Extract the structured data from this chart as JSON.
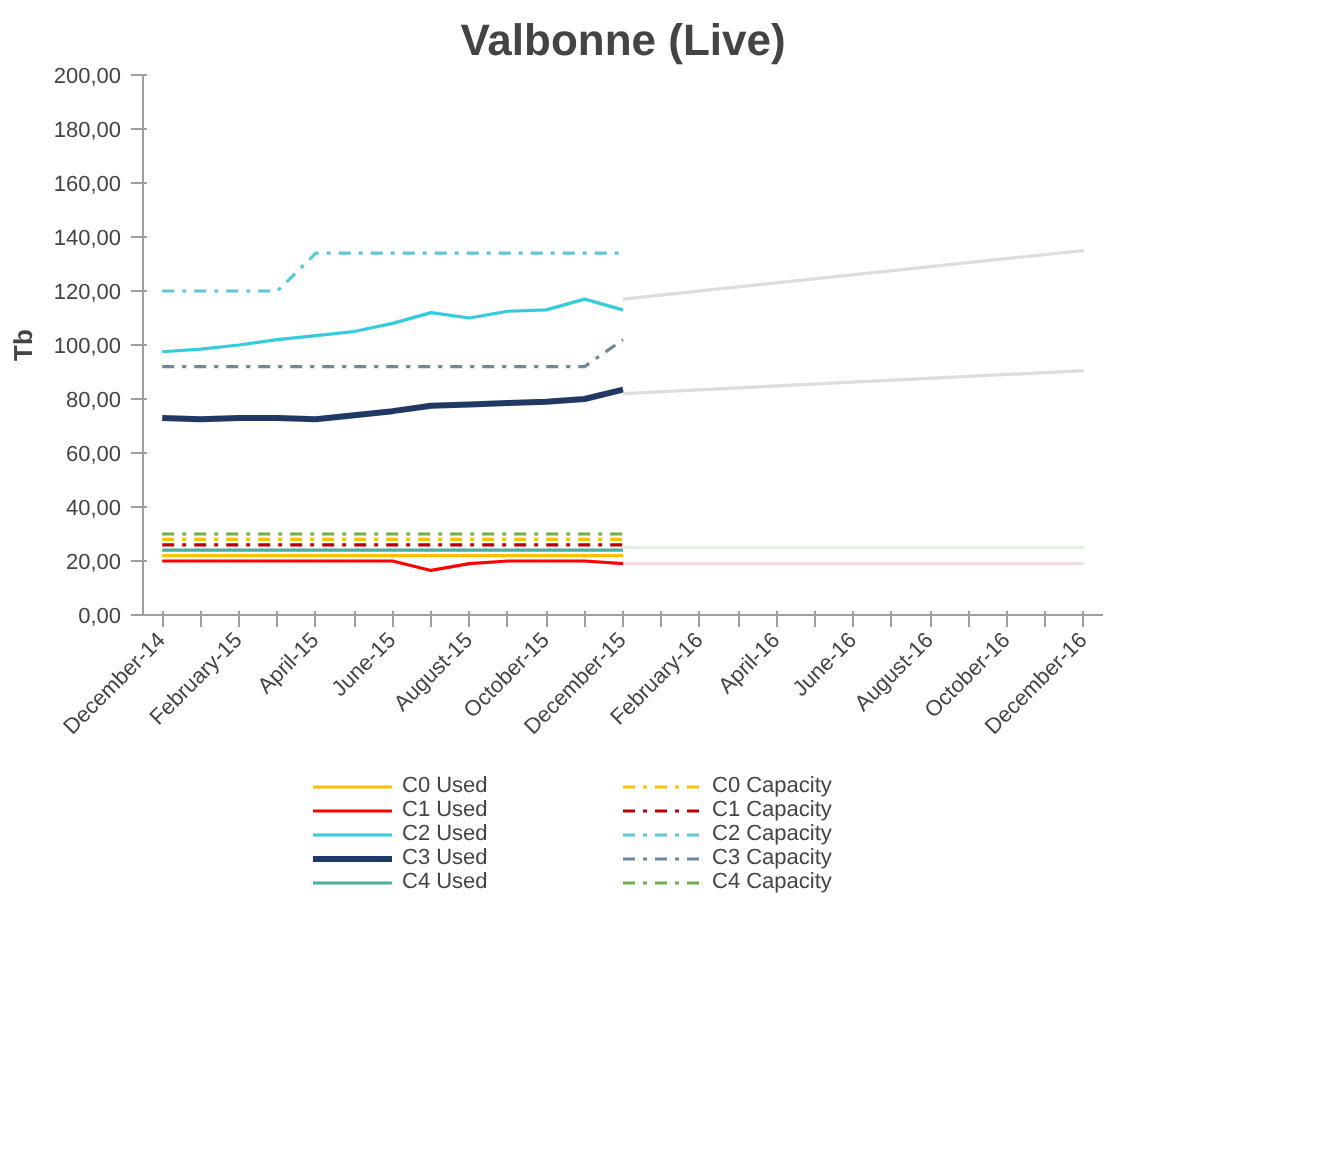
{
  "chart_data": {
    "type": "line",
    "title": "Valbonne (Live)",
    "ylabel": "Tb",
    "categories": [
      "December-14",
      null,
      "February-15",
      null,
      "April-15",
      null,
      "June-15",
      null,
      "August-15",
      null,
      "October-15",
      null,
      "December-15",
      null,
      "February-16",
      null,
      "April-16",
      null,
      "June-16",
      null,
      "August-16",
      null,
      "October-16",
      null,
      "December-16"
    ],
    "ylim": [
      0,
      200
    ],
    "yticks": [
      {
        "value": 0,
        "label": "0,00"
      },
      {
        "value": 20,
        "label": "20,00"
      },
      {
        "value": 40,
        "label": "40,00"
      },
      {
        "value": 60,
        "label": "60,00"
      },
      {
        "value": 80,
        "label": "80,00"
      },
      {
        "value": 100,
        "label": "100,00"
      },
      {
        "value": 120,
        "label": "120,00"
      },
      {
        "value": 140,
        "label": "140,00"
      },
      {
        "value": 160,
        "label": "160,00"
      },
      {
        "value": 180,
        "label": "180,00"
      },
      {
        "value": 200,
        "label": "200,00"
      }
    ],
    "grid": false,
    "legend": "bottom",
    "line_style": "solid",
    "marker": "none",
    "series": [
      {
        "name": "C0 Used",
        "color": "#ffc000",
        "values": [
          22,
          22,
          22,
          22,
          22,
          22,
          22,
          22,
          22,
          22,
          22,
          22,
          22,
          null,
          null,
          null,
          null,
          null,
          null,
          null,
          null,
          null,
          null,
          null,
          null
        ]
      },
      {
        "name": "C0 Capacity",
        "color": "#ffc000",
        "line_style": "dashdot",
        "values": [
          28,
          28,
          28,
          28,
          28,
          28,
          28,
          28,
          28,
          28,
          28,
          28,
          28,
          null,
          null,
          null,
          null,
          null,
          null,
          null,
          null,
          null,
          null,
          null,
          null
        ]
      },
      {
        "name": "C1 Used",
        "color": "#ff0000",
        "values": [
          20,
          20,
          20,
          20,
          20,
          20,
          20,
          16.5,
          19,
          20,
          20,
          20,
          19,
          null,
          null,
          null,
          null,
          null,
          null,
          null,
          null,
          null,
          null,
          null,
          null
        ]
      },
      {
        "name": "C1 Capacity",
        "color": "#c00000",
        "line_style": "dashdot",
        "values": [
          26,
          26,
          26,
          26,
          26,
          26,
          26,
          26,
          26,
          26,
          26,
          26,
          26,
          null,
          null,
          null,
          null,
          null,
          null,
          null,
          null,
          null,
          null,
          null,
          null
        ]
      },
      {
        "name": "C2 Used",
        "color": "#33ccdd",
        "values": [
          97.5,
          98.5,
          100,
          102,
          103.5,
          105,
          108,
          112,
          110,
          112.5,
          113,
          117,
          113,
          null,
          null,
          null,
          null,
          null,
          null,
          null,
          null,
          null,
          null,
          null,
          null
        ]
      },
      {
        "name": "C2 Capacity",
        "color": "#5bc8d8",
        "line_style": "dashdot",
        "values": [
          120,
          120,
          120,
          120,
          134,
          134,
          134,
          134,
          134,
          134,
          134,
          134,
          134,
          null,
          null,
          null,
          null,
          null,
          null,
          null,
          null,
          null,
          null,
          null,
          null
        ]
      },
      {
        "name": "C3 Used",
        "color": "#1f3864",
        "values": [
          73,
          72.5,
          73,
          73,
          72.5,
          74,
          75.5,
          77.5,
          78,
          78.5,
          79,
          80,
          83.5,
          null,
          null,
          null,
          null,
          null,
          null,
          null,
          null,
          null,
          null,
          null,
          null
        ]
      },
      {
        "name": "C3 Capacity",
        "color": "#6a8a9a",
        "line_style": "dashdot",
        "values": [
          92,
          92,
          92,
          92,
          92,
          92,
          92,
          92,
          92,
          92,
          92,
          92,
          102,
          null,
          null,
          null,
          null,
          null,
          null,
          null,
          null,
          null,
          null,
          null,
          null
        ]
      },
      {
        "name": "C4 Used",
        "color": "#4cae9c",
        "values": [
          24,
          24,
          24,
          24,
          24,
          24,
          24,
          24,
          24,
          24,
          24,
          24,
          24,
          null,
          null,
          null,
          null,
          null,
          null,
          null,
          null,
          null,
          null,
          null,
          null
        ]
      },
      {
        "name": "C4 Capacity",
        "color": "#70ad47",
        "line_style": "dashdot",
        "values": [
          30,
          30,
          30,
          30,
          30,
          30,
          30,
          30,
          30,
          30,
          30,
          30,
          30,
          null,
          null,
          null,
          null,
          null,
          null,
          null,
          null,
          null,
          null,
          null,
          null
        ]
      },
      {
        "color": "#dddddd",
        "values": [
          null,
          null,
          null,
          null,
          null,
          null,
          null,
          null,
          null,
          null,
          null,
          null,
          117,
          null,
          null,
          null,
          null,
          null,
          null,
          null,
          null,
          null,
          null,
          null,
          135
        ]
      },
      {
        "color": "#dddddd",
        "values": [
          null,
          null,
          null,
          null,
          null,
          null,
          null,
          null,
          null,
          null,
          null,
          null,
          82,
          null,
          null,
          null,
          null,
          null,
          null,
          null,
          null,
          null,
          null,
          null,
          90.5
        ]
      },
      {
        "color": "#f4dcdc",
        "values": [
          null,
          null,
          null,
          null,
          null,
          null,
          null,
          null,
          null,
          null,
          null,
          null,
          19,
          null,
          null,
          null,
          null,
          null,
          null,
          null,
          null,
          null,
          null,
          null,
          19
        ]
      },
      {
        "color": "#e4ece4",
        "values": [
          null,
          null,
          null,
          null,
          null,
          null,
          null,
          null,
          null,
          null,
          null,
          null,
          25,
          null,
          null,
          null,
          null,
          null,
          null,
          null,
          null,
          null,
          null,
          null,
          25
        ]
      }
    ]
  }
}
